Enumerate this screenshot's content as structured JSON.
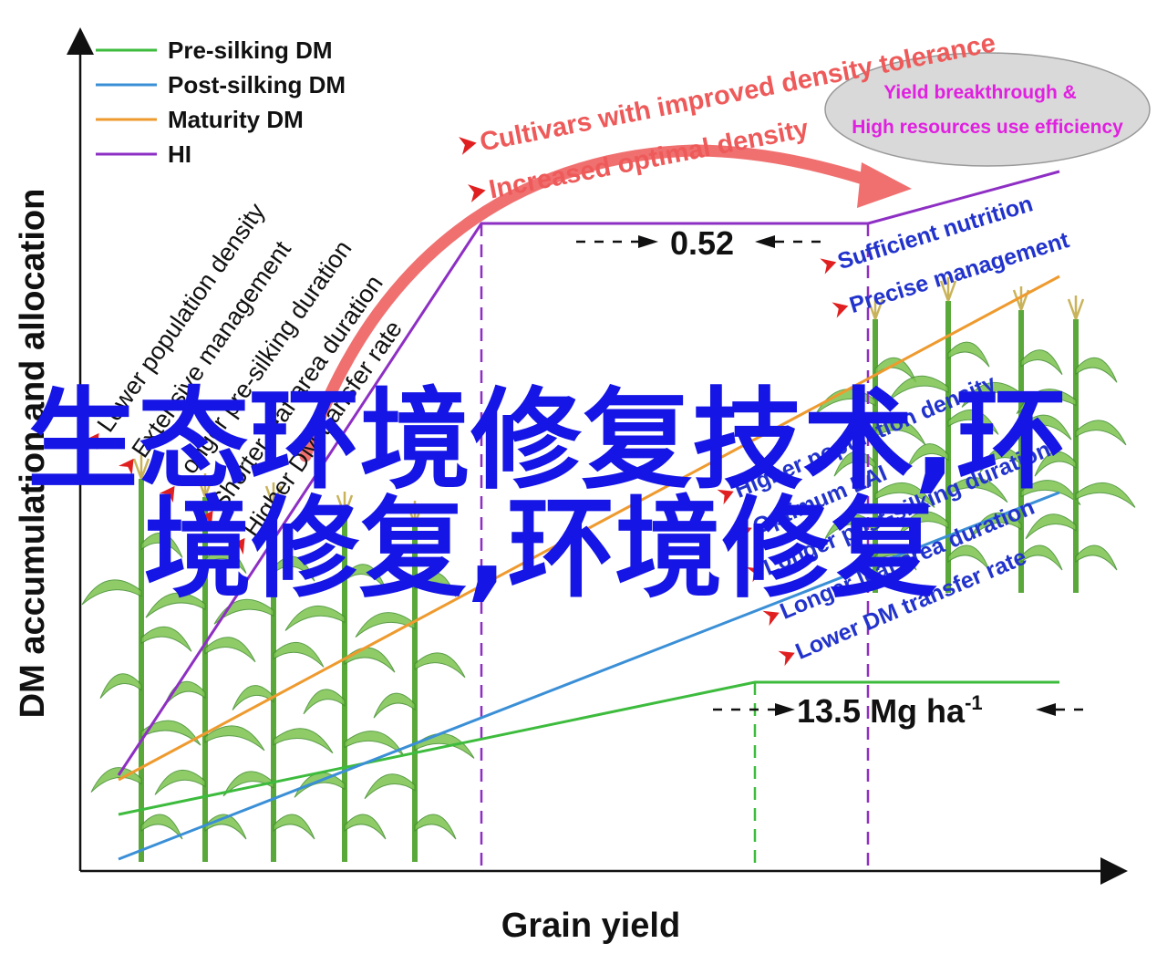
{
  "axes": {
    "ylabel": "DM accumulation and allocation",
    "xlabel": "Grain yield"
  },
  "legend": [
    {
      "label": "Pre-silking DM",
      "color": "#3dbb3d"
    },
    {
      "label": "Post-silking DM",
      "color": "#3a8fd6"
    },
    {
      "label": "Maturity DM",
      "color": "#ee9a2e"
    },
    {
      "label": "HI",
      "color": "#8e2fc4"
    }
  ],
  "left_factors": [
    "Lower population density",
    "Extensive management",
    "Longer pre-silking duration",
    "Shorter leaf area duration",
    "Higher DM transfer rate"
  ],
  "right_top_factors": [
    "Sufficient nutrition",
    "Precise management"
  ],
  "right_factors": [
    "Higher population density",
    "Optimum LAI",
    "Longer post-silking duration",
    "Longer leaf area duration",
    "Lower DM transfer rate"
  ],
  "arrow_labels": {
    "line1": "Cultivars with improved density tolerance",
    "line2": "Increased optimal density"
  },
  "ellipse": {
    "line1": "Yield breakthrough &",
    "line2": "High resources use efficiency"
  },
  "values": {
    "hi_value": "0.52",
    "yield_value": "13.5 Mg ha",
    "yield_sup": "-1"
  },
  "overlay": {
    "line1": "生态环境修复技术,环",
    "line2": "境修复,环境修复"
  },
  "colors": {
    "pre_silking": "#3dbb3d",
    "post_silking": "#3a8fd6",
    "maturity": "#ee9a2e",
    "hi": "#8e2fc4",
    "red_arrow": "#f07070",
    "red_text": "#ee5a5a",
    "blue_text": "#2233cc",
    "ellipse_fill": "#d9d9d9",
    "ellipse_text": "#e020e0",
    "watermark": "#1515e6"
  }
}
